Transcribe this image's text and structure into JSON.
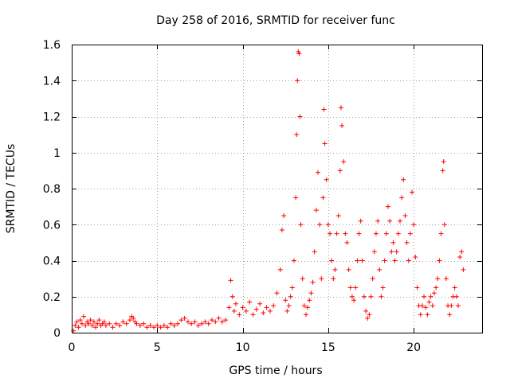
{
  "chart_data": {
    "type": "scatter",
    "title": "Day 258 of 2016, SRMTID for receiver func",
    "xlabel": "GPS time / hours",
    "ylabel": "SRMTID / TECUs",
    "xlim": [
      0,
      24
    ],
    "ylim": [
      0,
      1.6
    ],
    "xticks": [
      0,
      5,
      10,
      15,
      20
    ],
    "xtick_labels": [
      "0",
      "5",
      "10",
      "15",
      "20"
    ],
    "yticks": [
      0,
      0.2,
      0.4,
      0.6,
      0.8,
      1,
      1.2,
      1.4,
      1.6
    ],
    "ytick_labels": [
      "0",
      "0.2",
      "0.4",
      "0.6",
      "0.8",
      "1",
      "1.2",
      "1.4",
      "1.6"
    ],
    "grid": true,
    "marker": "plus",
    "color": "#ff0000",
    "series": [
      {
        "name": "SRMTID",
        "points": [
          [
            0.1,
            0.01
          ],
          [
            0.2,
            0.04
          ],
          [
            0.3,
            0.06
          ],
          [
            0.4,
            0.03
          ],
          [
            0.5,
            0.07
          ],
          [
            0.6,
            0.05
          ],
          [
            0.7,
            0.09
          ],
          [
            0.8,
            0.04
          ],
          [
            0.9,
            0.06
          ],
          [
            1.0,
            0.05
          ],
          [
            1.1,
            0.07
          ],
          [
            1.2,
            0.04
          ],
          [
            1.3,
            0.06
          ],
          [
            1.4,
            0.03
          ],
          [
            1.5,
            0.05
          ],
          [
            1.6,
            0.07
          ],
          [
            1.7,
            0.04
          ],
          [
            1.8,
            0.05
          ],
          [
            1.9,
            0.06
          ],
          [
            2.0,
            0.04
          ],
          [
            2.2,
            0.05
          ],
          [
            2.4,
            0.03
          ],
          [
            2.6,
            0.05
          ],
          [
            2.8,
            0.04
          ],
          [
            3.0,
            0.06
          ],
          [
            3.2,
            0.05
          ],
          [
            3.4,
            0.07
          ],
          [
            3.5,
            0.09
          ],
          [
            3.6,
            0.08
          ],
          [
            3.7,
            0.06
          ],
          [
            3.8,
            0.05
          ],
          [
            4.0,
            0.04
          ],
          [
            4.2,
            0.05
          ],
          [
            4.4,
            0.03
          ],
          [
            4.6,
            0.04
          ],
          [
            4.8,
            0.03
          ],
          [
            5.0,
            0.04
          ],
          [
            5.2,
            0.03
          ],
          [
            5.4,
            0.04
          ],
          [
            5.6,
            0.03
          ],
          [
            5.8,
            0.05
          ],
          [
            6.0,
            0.04
          ],
          [
            6.2,
            0.05
          ],
          [
            6.4,
            0.07
          ],
          [
            6.6,
            0.08
          ],
          [
            6.8,
            0.06
          ],
          [
            7.0,
            0.05
          ],
          [
            7.2,
            0.06
          ],
          [
            7.4,
            0.04
          ],
          [
            7.6,
            0.05
          ],
          [
            7.8,
            0.06
          ],
          [
            8.0,
            0.05
          ],
          [
            8.2,
            0.07
          ],
          [
            8.4,
            0.06
          ],
          [
            8.6,
            0.08
          ],
          [
            8.8,
            0.06
          ],
          [
            9.0,
            0.07
          ],
          [
            9.2,
            0.14
          ],
          [
            9.3,
            0.29
          ],
          [
            9.4,
            0.2
          ],
          [
            9.5,
            0.12
          ],
          [
            9.6,
            0.16
          ],
          [
            9.8,
            0.1
          ],
          [
            10.0,
            0.14
          ],
          [
            10.2,
            0.12
          ],
          [
            10.4,
            0.17
          ],
          [
            10.6,
            0.1
          ],
          [
            10.8,
            0.13
          ],
          [
            11.0,
            0.16
          ],
          [
            11.2,
            0.11
          ],
          [
            11.4,
            0.14
          ],
          [
            11.6,
            0.12
          ],
          [
            11.8,
            0.15
          ],
          [
            12.0,
            0.22
          ],
          [
            12.2,
            0.35
          ],
          [
            12.3,
            0.57
          ],
          [
            12.4,
            0.65
          ],
          [
            12.5,
            0.18
          ],
          [
            12.6,
            0.12
          ],
          [
            12.7,
            0.15
          ],
          [
            12.8,
            0.2
          ],
          [
            12.9,
            0.25
          ],
          [
            13.0,
            0.4
          ],
          [
            13.1,
            0.75
          ],
          [
            13.15,
            1.1
          ],
          [
            13.2,
            1.4
          ],
          [
            13.25,
            1.56
          ],
          [
            13.3,
            1.55
          ],
          [
            13.35,
            1.2
          ],
          [
            13.4,
            0.6
          ],
          [
            13.5,
            0.3
          ],
          [
            13.6,
            0.15
          ],
          [
            13.7,
            0.1
          ],
          [
            13.8,
            0.14
          ],
          [
            13.9,
            0.18
          ],
          [
            14.0,
            0.22
          ],
          [
            14.1,
            0.28
          ],
          [
            14.2,
            0.45
          ],
          [
            14.3,
            0.68
          ],
          [
            14.4,
            0.89
          ],
          [
            14.5,
            0.6
          ],
          [
            14.6,
            0.3
          ],
          [
            14.7,
            0.75
          ],
          [
            14.75,
            1.24
          ],
          [
            14.8,
            1.05
          ],
          [
            14.9,
            0.85
          ],
          [
            15.0,
            0.6
          ],
          [
            15.1,
            0.55
          ],
          [
            15.2,
            0.4
          ],
          [
            15.3,
            0.3
          ],
          [
            15.4,
            0.35
          ],
          [
            15.5,
            0.55
          ],
          [
            15.6,
            0.65
          ],
          [
            15.7,
            0.9
          ],
          [
            15.75,
            1.25
          ],
          [
            15.8,
            1.15
          ],
          [
            15.9,
            0.95
          ],
          [
            16.0,
            0.55
          ],
          [
            16.1,
            0.5
          ],
          [
            16.2,
            0.35
          ],
          [
            16.3,
            0.25
          ],
          [
            16.4,
            0.2
          ],
          [
            16.5,
            0.18
          ],
          [
            16.6,
            0.25
          ],
          [
            16.7,
            0.4
          ],
          [
            16.8,
            0.55
          ],
          [
            16.9,
            0.62
          ],
          [
            17.0,
            0.4
          ],
          [
            17.1,
            0.2
          ],
          [
            17.2,
            0.12
          ],
          [
            17.3,
            0.08
          ],
          [
            17.4,
            0.1
          ],
          [
            17.5,
            0.2
          ],
          [
            17.6,
            0.3
          ],
          [
            17.7,
            0.45
          ],
          [
            17.8,
            0.55
          ],
          [
            17.9,
            0.62
          ],
          [
            18.0,
            0.35
          ],
          [
            18.1,
            0.2
          ],
          [
            18.2,
            0.25
          ],
          [
            18.3,
            0.4
          ],
          [
            18.4,
            0.55
          ],
          [
            18.5,
            0.7
          ],
          [
            18.6,
            0.62
          ],
          [
            18.7,
            0.45
          ],
          [
            18.8,
            0.5
          ],
          [
            18.9,
            0.4
          ],
          [
            19.0,
            0.45
          ],
          [
            19.1,
            0.55
          ],
          [
            19.2,
            0.62
          ],
          [
            19.3,
            0.75
          ],
          [
            19.4,
            0.85
          ],
          [
            19.5,
            0.65
          ],
          [
            19.6,
            0.5
          ],
          [
            19.7,
            0.4
          ],
          [
            19.8,
            0.55
          ],
          [
            19.9,
            0.78
          ],
          [
            20.0,
            0.6
          ],
          [
            20.1,
            0.42
          ],
          [
            20.2,
            0.25
          ],
          [
            20.3,
            0.15
          ],
          [
            20.4,
            0.1
          ],
          [
            20.5,
            0.15
          ],
          [
            20.6,
            0.2
          ],
          [
            20.7,
            0.14
          ],
          [
            20.8,
            0.1
          ],
          [
            20.9,
            0.17
          ],
          [
            21.0,
            0.2
          ],
          [
            21.1,
            0.15
          ],
          [
            21.2,
            0.22
          ],
          [
            21.3,
            0.25
          ],
          [
            21.4,
            0.3
          ],
          [
            21.5,
            0.4
          ],
          [
            21.6,
            0.55
          ],
          [
            21.7,
            0.9
          ],
          [
            21.75,
            0.95
          ],
          [
            21.8,
            0.6
          ],
          [
            21.9,
            0.3
          ],
          [
            22.0,
            0.15
          ],
          [
            22.1,
            0.1
          ],
          [
            22.2,
            0.15
          ],
          [
            22.3,
            0.2
          ],
          [
            22.4,
            0.25
          ],
          [
            22.5,
            0.2
          ],
          [
            22.6,
            0.15
          ],
          [
            22.7,
            0.42
          ],
          [
            22.8,
            0.45
          ],
          [
            22.9,
            0.35
          ]
        ]
      }
    ]
  }
}
